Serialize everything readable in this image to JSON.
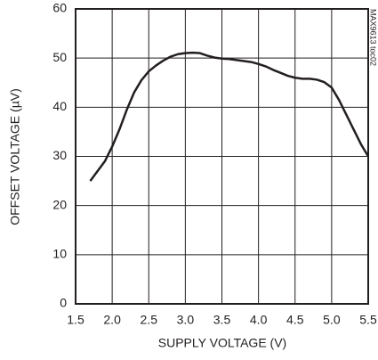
{
  "chart_data": {
    "type": "line",
    "xlabel": "SUPPLY VOLTAGE (V)",
    "ylabel": "OFFSET VOLTAGE (µV)",
    "annotation": "MAX9613 toc02",
    "color": "#231f20",
    "grid": true,
    "x": [
      1.7,
      1.8,
      1.9,
      2.0,
      2.1,
      2.2,
      2.3,
      2.4,
      2.5,
      2.6,
      2.7,
      2.8,
      2.9,
      3.0,
      3.1,
      3.2,
      3.3,
      3.4,
      3.5,
      3.6,
      3.7,
      3.8,
      3.9,
      4.0,
      4.1,
      4.2,
      4.3,
      4.4,
      4.5,
      4.6,
      4.7,
      4.8,
      4.9,
      5.0,
      5.1,
      5.2,
      5.3,
      5.4,
      5.5
    ],
    "values": [
      25,
      27,
      29,
      32,
      35.5,
      39.5,
      43,
      45.5,
      47.3,
      48.5,
      49.5,
      50.3,
      50.8,
      51,
      51.1,
      51,
      50.5,
      50.1,
      49.9,
      49.8,
      49.6,
      49.4,
      49.2,
      48.8,
      48.3,
      47.6,
      47,
      46.4,
      46,
      45.8,
      45.8,
      45.6,
      45.1,
      44,
      41.5,
      38.5,
      35.5,
      32.5,
      30
    ],
    "xlim": [
      1.5,
      5.5
    ],
    "xticks": [
      1.5,
      {
        "value": 2,
        "label": "2.0"
      },
      2.5,
      {
        "value": 3,
        "label": "3.0"
      },
      3.5,
      {
        "value": 4,
        "label": "4.0"
      },
      4.5,
      {
        "value": 5,
        "label": "5.0"
      },
      5.5
    ],
    "ylim": [
      0,
      60
    ],
    "yticks": [
      0,
      10,
      20,
      30,
      40,
      50,
      60
    ]
  }
}
